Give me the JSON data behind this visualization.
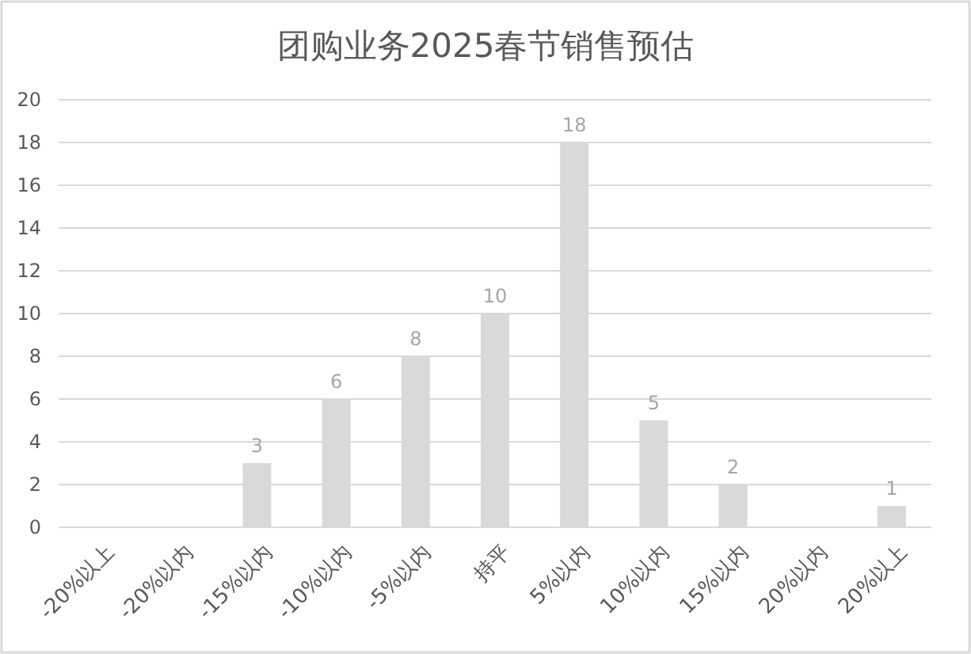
{
  "chart_data": {
    "type": "bar",
    "title": "团购业务2025春节销售预估",
    "categories": [
      "-20%以上",
      "-20%以内",
      "-15%以内",
      "-10%以内",
      "-5%以内",
      "持平",
      "5%以内",
      "10%以内",
      "15%以内",
      "20%以内",
      "20%以上"
    ],
    "values": [
      0,
      0,
      3,
      6,
      8,
      10,
      18,
      5,
      2,
      0,
      1
    ],
    "value_labels": [
      null,
      null,
      "3",
      "6",
      "8",
      "10",
      "18",
      "5",
      "2",
      null,
      "1"
    ],
    "color": "#d9d9d9",
    "ylim": [
      0,
      20
    ],
    "yticks": [
      0,
      2,
      4,
      6,
      8,
      10,
      12,
      14,
      16,
      18,
      20
    ],
    "grid": "y"
  }
}
